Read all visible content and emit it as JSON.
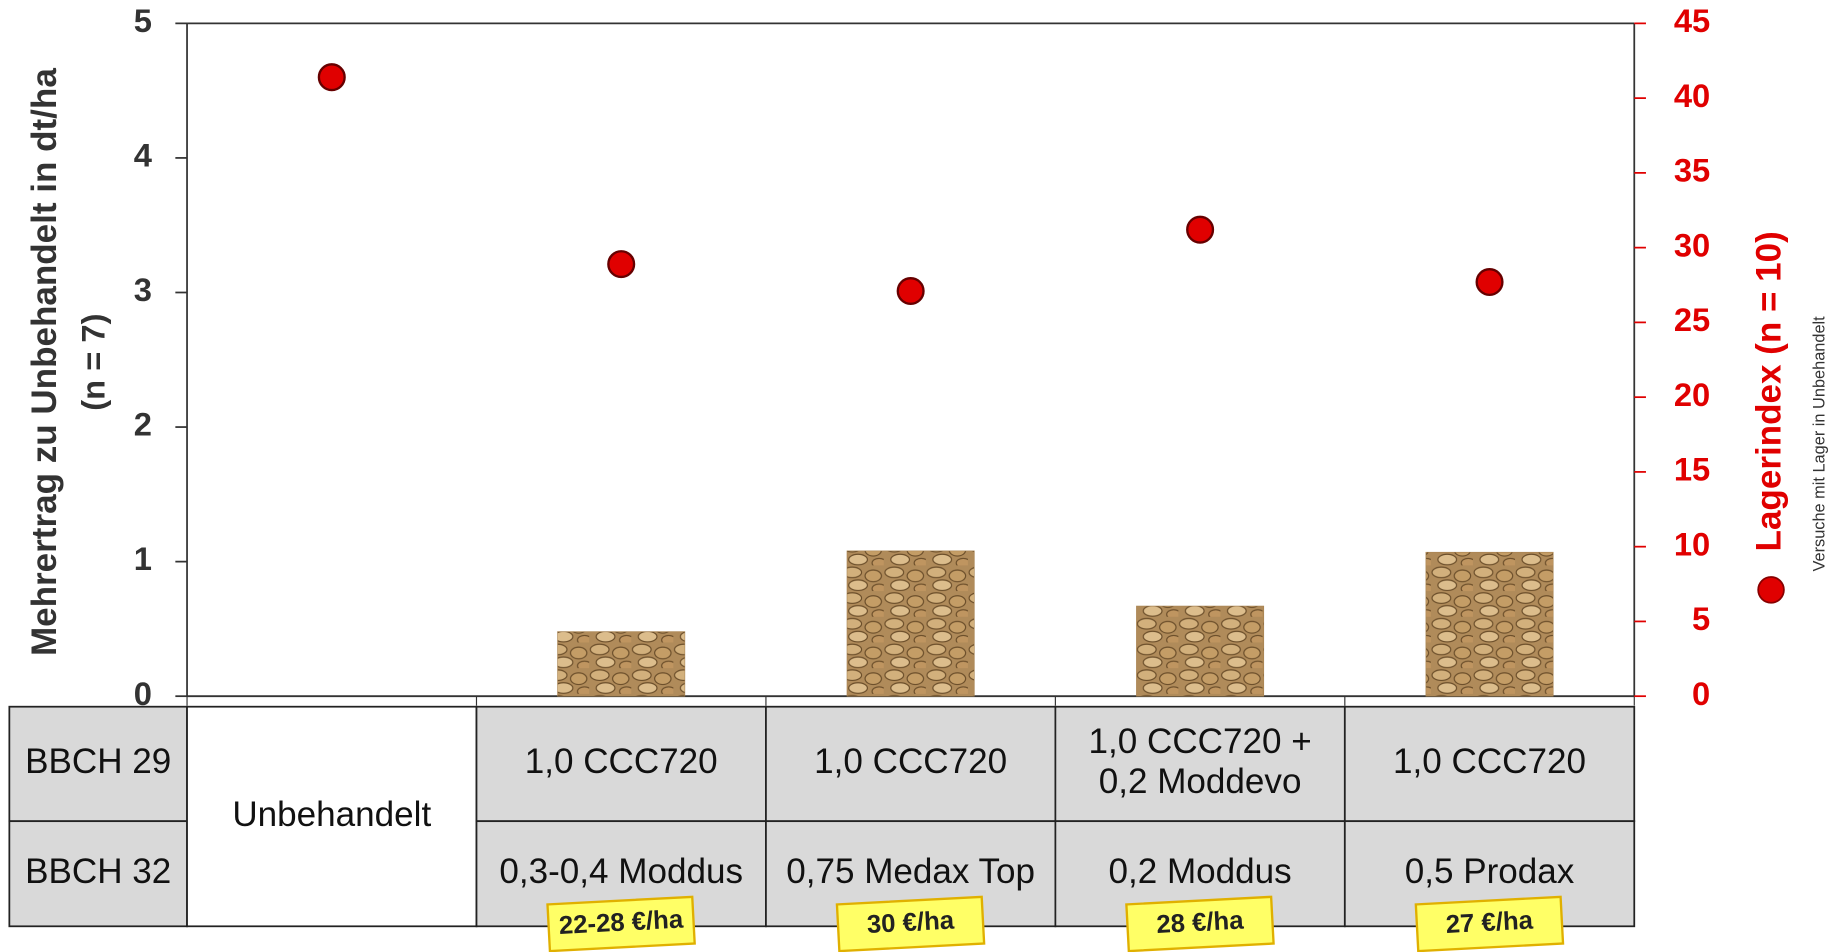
{
  "chart_data": {
    "type": "combo",
    "ylabel": "Mehrertrag zu Unbehandelt in dt/ha",
    "ylabel_sub": "(n = 7)",
    "y2label": "Lagerindex  (n = 10)",
    "note": "Versuche mit Lager in Unbehandelt",
    "ylim": [
      0,
      5
    ],
    "yticks": [
      0,
      1,
      2,
      3,
      4,
      5
    ],
    "y2lim": [
      0,
      45
    ],
    "y2ticks": [
      0,
      5,
      10,
      15,
      20,
      25,
      30,
      35,
      40,
      45
    ],
    "series": [
      {
        "type": "bar",
        "color": "#a98350",
        "values": [
          null,
          0.48,
          1.08,
          0.67,
          1.07
        ]
      },
      {
        "type": "scatter",
        "axis": "y2",
        "color": "#e00000",
        "values": [
          41.4,
          28.9,
          27.1,
          31.2,
          27.7
        ]
      }
    ],
    "table": {
      "row_labels": [
        "BBCH 29",
        "BBCH 32"
      ],
      "merged": "Unbehandelt",
      "rows": [
        [
          "1,0 CCC720",
          "1,0 CCC720",
          "1,0 CCC720 +\n0,2 Moddevo",
          "1,0 CCC720"
        ],
        [
          "0,3-0,4 Moddus",
          "0,75 Medax Top",
          "0,2 Moddus",
          "0,5 Prodax"
        ]
      ]
    },
    "costs": [
      "22-28 €/ha",
      "30 €/ha",
      "28 €/ha",
      "27 €/ha"
    ]
  }
}
